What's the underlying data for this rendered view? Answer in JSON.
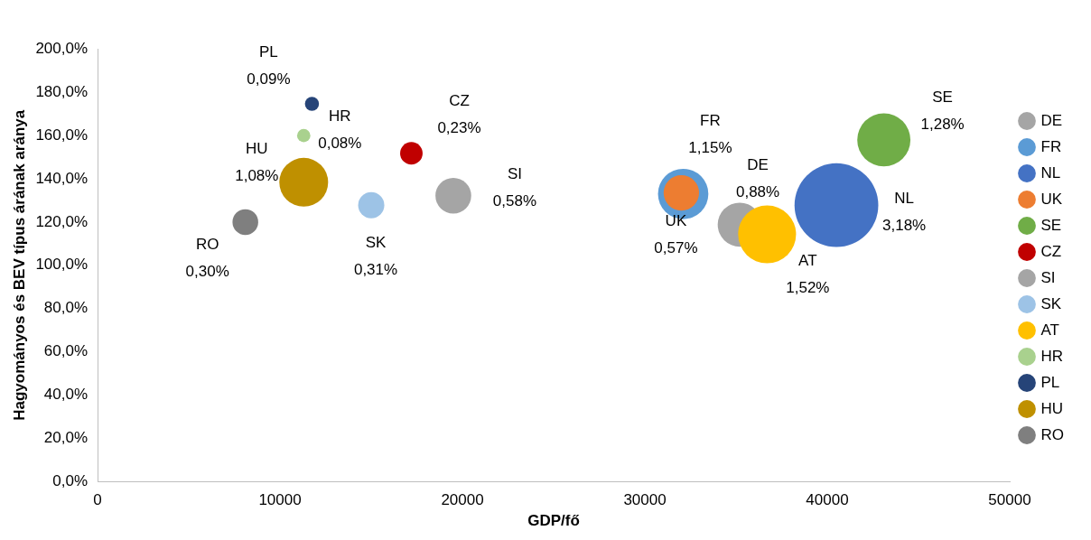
{
  "chart_data": {
    "type": "bubble",
    "xlabel": "GDP/fő",
    "ylabel": "Hagyományos és BEV típus árának aránya",
    "xlim": [
      0,
      50000
    ],
    "xticks": [
      0,
      10000,
      20000,
      30000,
      40000,
      50000
    ],
    "ylim": [
      0,
      200
    ],
    "yticks": [
      {
        "value": 0,
        "label": "0,0%"
      },
      {
        "value": 20,
        "label": "20,0%"
      },
      {
        "value": 40,
        "label": "40,0%"
      },
      {
        "value": 60,
        "label": "60,0%"
      },
      {
        "value": 80,
        "label": "80,0%"
      },
      {
        "value": 100,
        "label": "100,0%"
      },
      {
        "value": 120,
        "label": "120,0%"
      },
      {
        "value": 140,
        "label": "140,0%"
      },
      {
        "value": 160,
        "label": "160,0%"
      },
      {
        "value": 180,
        "label": "180,0%"
      },
      {
        "value": 200,
        "label": "200,0%"
      }
    ],
    "grid": false,
    "legend": "right",
    "series": [
      {
        "name": "DE",
        "color": "#a5a5a5",
        "x": [
          35200
        ],
        "values": [
          118.8
        ],
        "sizes": [
          0.88
        ],
        "value_labels": [
          "0,88%"
        ]
      },
      {
        "name": "FR",
        "color": "#5b9bd5",
        "x": [
          32100
        ],
        "values": [
          133
        ],
        "sizes": [
          1.15
        ],
        "value_labels": [
          "1,15%"
        ]
      },
      {
        "name": "NL",
        "color": "#4472c4",
        "x": [
          40500
        ],
        "values": [
          127.8
        ],
        "sizes": [
          3.18
        ],
        "value_labels": [
          "3,18%"
        ]
      },
      {
        "name": "UK",
        "color": "#ed7d31",
        "x": [
          32000
        ],
        "values": [
          133.5
        ],
        "sizes": [
          0.57
        ],
        "value_labels": [
          "0,57%"
        ]
      },
      {
        "name": "SE",
        "color": "#70ad47",
        "x": [
          43100
        ],
        "values": [
          158
        ],
        "sizes": [
          1.28
        ],
        "value_labels": [
          "1,28%"
        ]
      },
      {
        "name": "CZ",
        "color": "#c00000",
        "x": [
          17200
        ],
        "values": [
          151.8
        ],
        "sizes": [
          0.23
        ],
        "value_labels": [
          "0,23%"
        ]
      },
      {
        "name": "SI",
        "color": "#a5a5a5",
        "x": [
          19500
        ],
        "values": [
          132.2
        ],
        "sizes": [
          0.58
        ],
        "value_labels": [
          "0,58%"
        ]
      },
      {
        "name": "SK",
        "color": "#9dc3e6",
        "x": [
          15000
        ],
        "values": [
          127.8
        ],
        "sizes": [
          0.31
        ],
        "value_labels": [
          "0,31%"
        ]
      },
      {
        "name": "AT",
        "color": "#ffc000",
        "x": [
          36700
        ],
        "values": [
          114.3
        ],
        "sizes": [
          1.52
        ],
        "value_labels": [
          "1,52%"
        ]
      },
      {
        "name": "HR",
        "color": "#a9d18e",
        "x": [
          11300
        ],
        "values": [
          160
        ],
        "sizes": [
          0.08
        ],
        "value_labels": [
          "0,08%"
        ]
      },
      {
        "name": "PL",
        "color": "#264478",
        "x": [
          11750
        ],
        "values": [
          174.7
        ],
        "sizes": [
          0.09
        ],
        "value_labels": [
          "0,09%"
        ]
      },
      {
        "name": "HU",
        "color": "#bf9000",
        "x": [
          11300
        ],
        "values": [
          138.4
        ],
        "sizes": [
          1.08
        ],
        "value_labels": [
          "1,08%"
        ]
      },
      {
        "name": "RO",
        "color": "#7f7f7f",
        "x": [
          8100
        ],
        "values": [
          120
        ],
        "sizes": [
          0.3
        ],
        "value_labels": [
          "0,30%"
        ]
      }
    ]
  }
}
